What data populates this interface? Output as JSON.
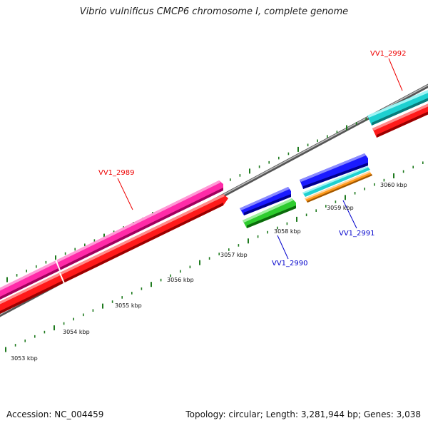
{
  "title": "Vibrio vulnificus CMCP6 chromosome I, complete genome",
  "footer": {
    "accession": "Accession: NC_004459",
    "summary": "Topology: circular; Length: 3,281,944 bp; Genes: 3,038"
  },
  "ruler": {
    "unit": "kbp",
    "labels": [
      "3053 kbp",
      "3054 kbp",
      "3055 kbp",
      "3056 kbp",
      "3057 kbp",
      "3058 kbp",
      "3059 kbp",
      "3060 kbp"
    ]
  },
  "colors": {
    "backbone": "#8c8c8c",
    "tick": "#1e7a1e",
    "cds_plus": "#ff1a1a",
    "gene_magenta": "#ff2aa8",
    "gene_blue": "#1a1aff",
    "gene_green": "#2ecc2e",
    "gene_cyan": "#1ed0d0",
    "gene_orange": "#ff9a1a",
    "label_red": "#ee0000",
    "label_blue": "#0000cc"
  },
  "genes": [
    {
      "name": "VV1_2989",
      "color_key": "label_red"
    },
    {
      "name": "VV1_2990",
      "color_key": "label_blue"
    },
    {
      "name": "VV1_2991",
      "color_key": "label_blue"
    },
    {
      "name": "VV1_2992",
      "color_key": "label_red"
    }
  ]
}
